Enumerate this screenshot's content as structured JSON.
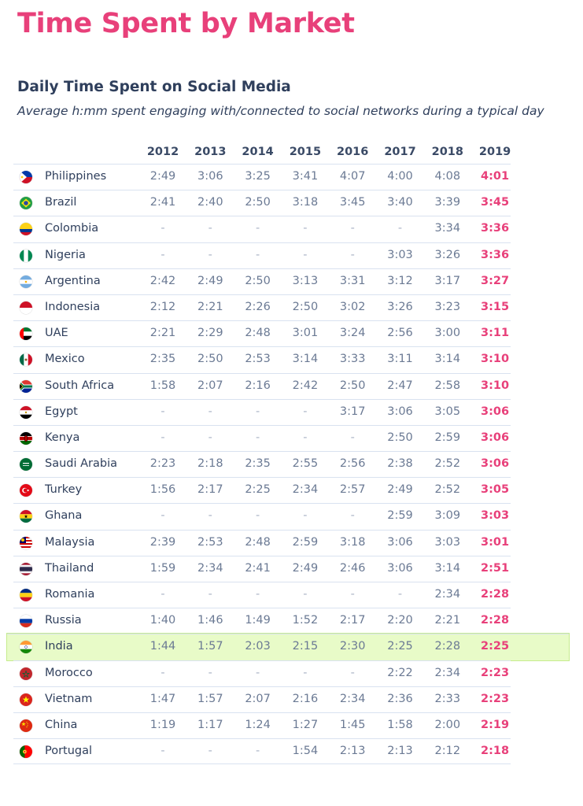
{
  "title": "Time Spent by Market",
  "subtitle": "Daily Time Spent on Social Media",
  "description": "Average h:mm spent engaging with/connected to social networks during a typical day",
  "years": [
    "2012",
    "2013",
    "2014",
    "2015",
    "2016",
    "2017",
    "2018",
    "2019"
  ],
  "colors": {
    "accent": "#e8407a",
    "highlight_bg": "#e8fbc8",
    "text": "#2f3f5c"
  },
  "rows": [
    {
      "country": "Philippines",
      "flag": "philippines-flag-icon",
      "values": [
        "2:49",
        "3:06",
        "3:25",
        "3:41",
        "4:07",
        "4:00",
        "4:08",
        "4:01"
      ]
    },
    {
      "country": "Brazil",
      "flag": "brazil-flag-icon",
      "values": [
        "2:41",
        "2:40",
        "2:50",
        "3:18",
        "3:45",
        "3:40",
        "3:39",
        "3:45"
      ]
    },
    {
      "country": "Colombia",
      "flag": "colombia-flag-icon",
      "values": [
        "-",
        "-",
        "-",
        "-",
        "-",
        "-",
        "3:34",
        "3:36"
      ]
    },
    {
      "country": "Nigeria",
      "flag": "nigeria-flag-icon",
      "values": [
        "-",
        "-",
        "-",
        "-",
        "-",
        "3:03",
        "3:26",
        "3:36"
      ]
    },
    {
      "country": "Argentina",
      "flag": "argentina-flag-icon",
      "values": [
        "2:42",
        "2:49",
        "2:50",
        "3:13",
        "3:31",
        "3:12",
        "3:17",
        "3:27"
      ]
    },
    {
      "country": "Indonesia",
      "flag": "indonesia-flag-icon",
      "values": [
        "2:12",
        "2:21",
        "2:26",
        "2:50",
        "3:02",
        "3:26",
        "3:23",
        "3:15"
      ]
    },
    {
      "country": "UAE",
      "flag": "uae-flag-icon",
      "values": [
        "2:21",
        "2:29",
        "2:48",
        "3:01",
        "3:24",
        "2:56",
        "3:00",
        "3:11"
      ]
    },
    {
      "country": "Mexico",
      "flag": "mexico-flag-icon",
      "values": [
        "2:35",
        "2:50",
        "2:53",
        "3:14",
        "3:33",
        "3:11",
        "3:14",
        "3:10"
      ]
    },
    {
      "country": "South Africa",
      "flag": "south-africa-flag-icon",
      "values": [
        "1:58",
        "2:07",
        "2:16",
        "2:42",
        "2:50",
        "2:47",
        "2:58",
        "3:10"
      ]
    },
    {
      "country": "Egypt",
      "flag": "egypt-flag-icon",
      "values": [
        "-",
        "-",
        "-",
        "-",
        "3:17",
        "3:06",
        "3:05",
        "3:06"
      ]
    },
    {
      "country": "Kenya",
      "flag": "kenya-flag-icon",
      "values": [
        "-",
        "-",
        "-",
        "-",
        "-",
        "2:50",
        "2:59",
        "3:06"
      ]
    },
    {
      "country": "Saudi Arabia",
      "flag": "saudi-arabia-flag-icon",
      "values": [
        "2:23",
        "2:18",
        "2:35",
        "2:55",
        "2:56",
        "2:38",
        "2:52",
        "3:06"
      ]
    },
    {
      "country": "Turkey",
      "flag": "turkey-flag-icon",
      "values": [
        "1:56",
        "2:17",
        "2:25",
        "2:34",
        "2:57",
        "2:49",
        "2:52",
        "3:05"
      ]
    },
    {
      "country": "Ghana",
      "flag": "ghana-flag-icon",
      "values": [
        "-",
        "-",
        "-",
        "-",
        "-",
        "2:59",
        "3:09",
        "3:03"
      ]
    },
    {
      "country": "Malaysia",
      "flag": "malaysia-flag-icon",
      "values": [
        "2:39",
        "2:53",
        "2:48",
        "2:59",
        "3:18",
        "3:06",
        "3:03",
        "3:01"
      ]
    },
    {
      "country": "Thailand",
      "flag": "thailand-flag-icon",
      "values": [
        "1:59",
        "2:34",
        "2:41",
        "2:49",
        "2:46",
        "3:06",
        "3:14",
        "2:51"
      ]
    },
    {
      "country": "Romania",
      "flag": "romania-flag-icon",
      "values": [
        "-",
        "-",
        "-",
        "-",
        "-",
        "-",
        "2:34",
        "2:28"
      ]
    },
    {
      "country": "Russia",
      "flag": "russia-flag-icon",
      "values": [
        "1:40",
        "1:46",
        "1:49",
        "1:52",
        "2:17",
        "2:20",
        "2:21",
        "2:28"
      ]
    },
    {
      "country": "India",
      "flag": "india-flag-icon",
      "highlight": true,
      "values": [
        "1:44",
        "1:57",
        "2:03",
        "2:15",
        "2:30",
        "2:25",
        "2:28",
        "2:25"
      ]
    },
    {
      "country": "Morocco",
      "flag": "morocco-flag-icon",
      "values": [
        "-",
        "-",
        "-",
        "-",
        "-",
        "2:22",
        "2:34",
        "2:23"
      ]
    },
    {
      "country": "Vietnam",
      "flag": "vietnam-flag-icon",
      "values": [
        "1:47",
        "1:57",
        "2:07",
        "2:16",
        "2:34",
        "2:36",
        "2:33",
        "2:23"
      ]
    },
    {
      "country": "China",
      "flag": "china-flag-icon",
      "values": [
        "1:19",
        "1:17",
        "1:24",
        "1:27",
        "1:45",
        "1:58",
        "2:00",
        "2:19"
      ]
    },
    {
      "country": "Portugal",
      "flag": "portugal-flag-icon",
      "values": [
        "-",
        "-",
        "-",
        "1:54",
        "2:13",
        "2:13",
        "2:12",
        "2:18"
      ]
    }
  ]
}
